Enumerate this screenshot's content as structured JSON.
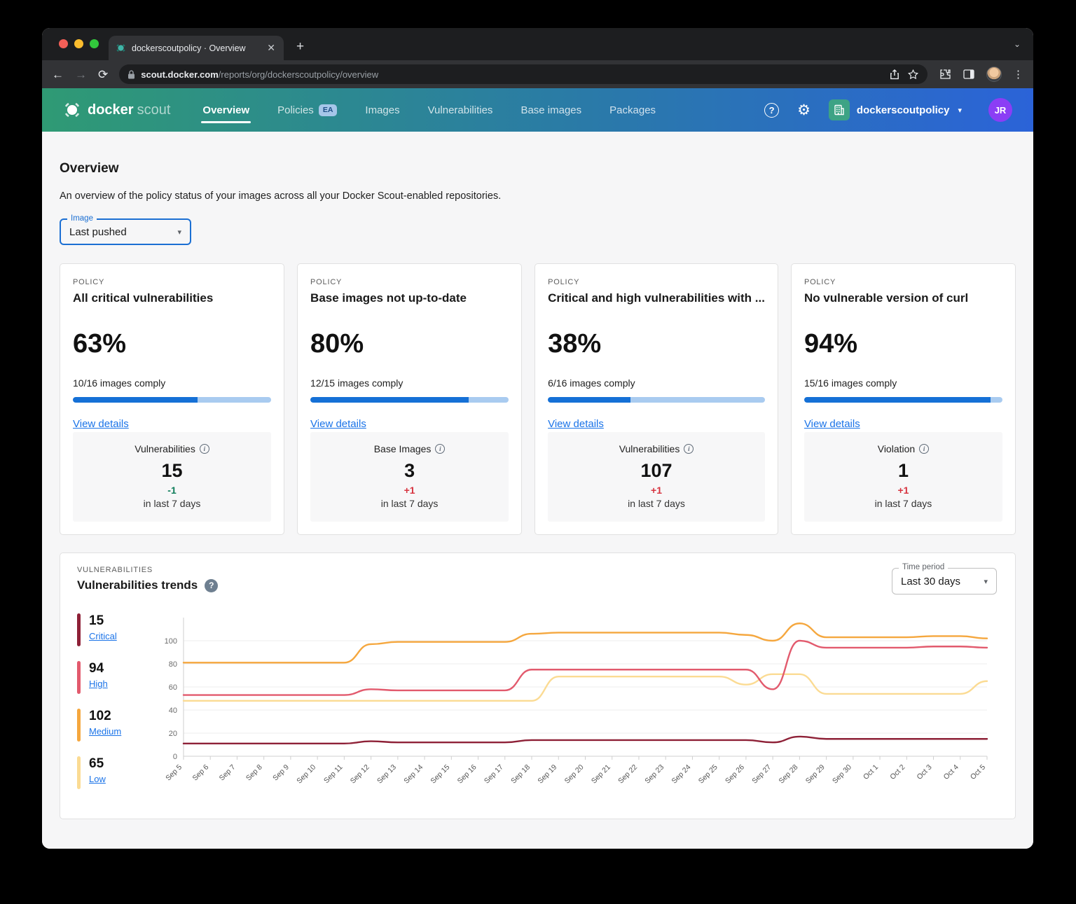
{
  "browser": {
    "tab_title": "dockerscoutpolicy · Overview",
    "url_domain": "scout.docker.com",
    "url_path": "/reports/org/dockerscoutpolicy/overview"
  },
  "navbar": {
    "logo_bold": "docker",
    "logo_light": "scout",
    "items": [
      {
        "label": "Overview",
        "active": true
      },
      {
        "label": "Policies",
        "badge": "EA"
      },
      {
        "label": "Images"
      },
      {
        "label": "Vulnerabilities"
      },
      {
        "label": "Base images"
      },
      {
        "label": "Packages"
      }
    ],
    "org_name": "dockerscoutpolicy",
    "avatar_initials": "JR"
  },
  "page": {
    "title": "Overview",
    "description": "An overview of the policy status of your images across all your Docker Scout-enabled repositories.",
    "image_filter_label": "Image",
    "image_filter_value": "Last pushed"
  },
  "policy_cards": [
    {
      "category": "POLICY",
      "title": "All critical vulnerabilities",
      "percent": "63%",
      "progress": 63,
      "compliance": "10/16 images comply",
      "link": "View details",
      "stat": {
        "label": "Vulnerabilities",
        "value": "15",
        "delta": "-1",
        "delta_color": "#0e7d5a",
        "period": "in last 7 days"
      }
    },
    {
      "category": "POLICY",
      "title": "Base images not up-to-date",
      "percent": "80%",
      "progress": 80,
      "compliance": "12/15 images comply",
      "link": "View details",
      "stat": {
        "label": "Base Images",
        "value": "3",
        "delta": "+1",
        "delta_color": "#d7333f",
        "period": "in last 7 days"
      }
    },
    {
      "category": "POLICY",
      "title": "Critical and high vulnerabilities with ...",
      "percent": "38%",
      "progress": 38,
      "compliance": "6/16 images comply",
      "link": "View details",
      "stat": {
        "label": "Vulnerabilities",
        "value": "107",
        "delta": "+1",
        "delta_color": "#d7333f",
        "period": "in last 7 days"
      }
    },
    {
      "category": "POLICY",
      "title": "No vulnerable version of curl",
      "percent": "94%",
      "progress": 94,
      "compliance": "15/16 images comply",
      "link": "View details",
      "stat": {
        "label": "Violation",
        "value": "1",
        "delta": "+1",
        "delta_color": "#d7333f",
        "period": "in last 7 days"
      }
    }
  ],
  "trends": {
    "category": "VULNERABILITIES",
    "title": "Vulnerabilities trends",
    "time_filter_label": "Time period",
    "time_filter_value": "Last 30 days",
    "legend": [
      {
        "count": "15",
        "label": "Critical",
        "color": "#8e2137"
      },
      {
        "count": "94",
        "label": "High",
        "color": "#e25a6d"
      },
      {
        "count": "102",
        "label": "Medium",
        "color": "#f5a73e"
      },
      {
        "count": "65",
        "label": "Low",
        "color": "#fbdb93"
      }
    ]
  },
  "chart_data": {
    "type": "line",
    "title": "Vulnerabilities trends",
    "xlabel": "",
    "ylabel": "",
    "ylim": [
      0,
      120
    ],
    "yticks": [
      0,
      20,
      40,
      60,
      80,
      100
    ],
    "grid": true,
    "legend_position": "left",
    "categories": [
      "Sep 5",
      "Sep 6",
      "Sep 7",
      "Sep 8",
      "Sep 9",
      "Sep 10",
      "Sep 11",
      "Sep 12",
      "Sep 13",
      "Sep 14",
      "Sep 15",
      "Sep 16",
      "Sep 17",
      "Sep 18",
      "Sep 19",
      "Sep 20",
      "Sep 21",
      "Sep 22",
      "Sep 23",
      "Sep 24",
      "Sep 25",
      "Sep 26",
      "Sep 27",
      "Sep 28",
      "Sep 29",
      "Sep 30",
      "Oct 1",
      "Oct 2",
      "Oct 3",
      "Oct 4",
      "Oct 5"
    ],
    "series": [
      {
        "name": "Low",
        "color": "#fbdb93",
        "values": [
          48,
          48,
          48,
          48,
          48,
          48,
          48,
          48,
          48,
          48,
          48,
          48,
          48,
          48,
          69,
          69,
          69,
          69,
          69,
          69,
          69,
          62,
          71,
          71,
          54,
          54,
          54,
          54,
          54,
          54,
          65
        ]
      },
      {
        "name": "Medium",
        "color": "#f5a73e",
        "values": [
          81,
          81,
          81,
          81,
          81,
          81,
          81,
          97,
          99,
          99,
          99,
          99,
          99,
          106,
          107,
          107,
          107,
          107,
          107,
          107,
          107,
          105,
          100,
          115,
          103,
          103,
          103,
          103,
          104,
          104,
          102
        ]
      },
      {
        "name": "High",
        "color": "#e25a6d",
        "values": [
          53,
          53,
          53,
          53,
          53,
          53,
          53,
          58,
          57,
          57,
          57,
          57,
          57,
          75,
          75,
          75,
          75,
          75,
          75,
          75,
          75,
          75,
          58,
          100,
          94,
          94,
          94,
          94,
          95,
          95,
          94
        ]
      },
      {
        "name": "Critical",
        "color": "#8e2137",
        "values": [
          11,
          11,
          11,
          11,
          11,
          11,
          11,
          13,
          12,
          12,
          12,
          12,
          12,
          14,
          14,
          14,
          14,
          14,
          14,
          14,
          14,
          14,
          12,
          17,
          15,
          15,
          15,
          15,
          15,
          15,
          15
        ]
      }
    ]
  }
}
